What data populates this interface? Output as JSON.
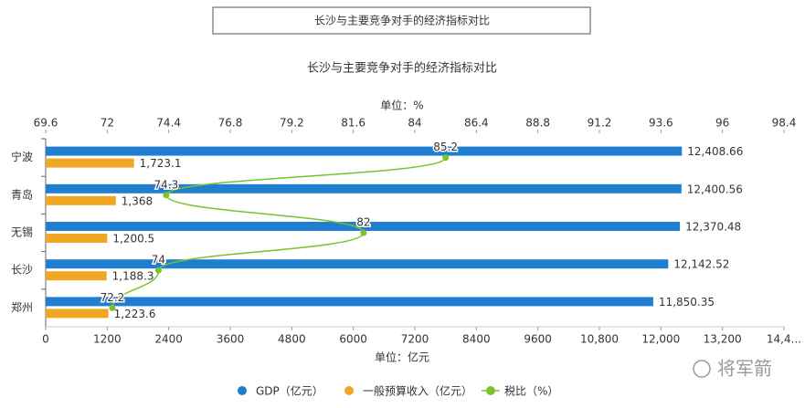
{
  "header": {
    "title": "长沙与主要竞争对手的经济指标对比"
  },
  "chart_data": {
    "type": "bar",
    "orientation": "horizontal",
    "title": "长沙与主要竞争对手的经济指标对比",
    "xlabel": "单位：亿元",
    "x2label": "单位：%",
    "categories": [
      "宁波",
      "青岛",
      "无锡",
      "长沙",
      "郑州"
    ],
    "series": [
      {
        "name": "GDP（亿元）",
        "color": "#1f7ed0",
        "values": [
          12408.66,
          12400.56,
          12370.48,
          12142.52,
          11850.35
        ],
        "value_labels": [
          "12,408.66",
          "12,400.56",
          "12,370.48",
          "12,142.52",
          "11,850.35"
        ]
      },
      {
        "name": "一般预算收入（亿元）",
        "color": "#f0a824",
        "values": [
          1723.1,
          1368,
          1200.5,
          1188.3,
          1223.6
        ],
        "value_labels": [
          "1,723.1",
          "1,368",
          "1,200.5",
          "1,188.3",
          "1,223.6"
        ]
      },
      {
        "name": "税比（%）",
        "color": "#7dc22b",
        "type": "line",
        "axis": "x2",
        "values": [
          85.2,
          74.3,
          82,
          74,
          72.2
        ]
      }
    ],
    "xlim": [
      0,
      14400
    ],
    "xticks": [
      0,
      1200,
      2400,
      3600,
      4800,
      6000,
      7200,
      8400,
      9600,
      {
        "value": 10800,
        "label": "10,800"
      },
      {
        "value": 12000,
        "label": "12,000"
      },
      {
        "value": 13200,
        "label": "13,200"
      },
      {
        "value": 14400,
        "label": "14,4..."
      }
    ],
    "x2lim": [
      69.6,
      98.4
    ],
    "x2ticks": [
      69.6,
      72,
      74.4,
      76.8,
      79.2,
      81.6,
      84,
      86.4,
      88.8,
      91.2,
      93.6,
      96,
      98.4
    ],
    "legend": "bottom"
  },
  "watermark": "将军箭"
}
